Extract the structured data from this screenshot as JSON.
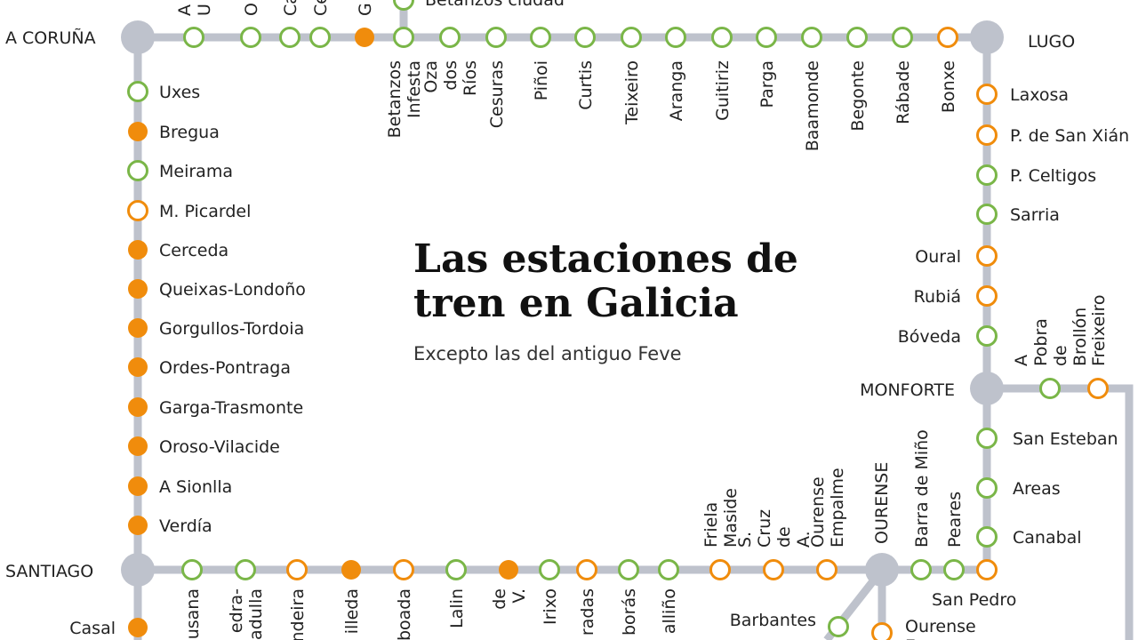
{
  "title_lines": [
    "Las estaciones de",
    "tren en Galicia"
  ],
  "subtitle": "Excepto las del antiguo Feve",
  "colors": {
    "line": "#bec2cc",
    "green": "#7ab648",
    "orange": "#f08c0c",
    "hub": "#bec2cc"
  },
  "legend_types": {
    "green_open": "green ring",
    "orange_open": "orange ring",
    "orange_fill": "orange dot"
  },
  "hubs": {
    "a_coruna": "A CORUÑA",
    "lugo": "LUGO",
    "santiago": "SANTIAGO",
    "monforte": "MONFORTE",
    "ourense": "OURENSE"
  },
  "top_row": [
    {
      "name": "A U",
      "type": "g"
    },
    {
      "name": "O",
      "type": "g"
    },
    {
      "name": "Ca",
      "type": "g"
    },
    {
      "name": "Ce",
      "type": "g"
    },
    {
      "name": "G",
      "type": "f"
    },
    {
      "name": "Betanzos Infesta",
      "type": "g"
    },
    {
      "name": "Oza dos Ríos",
      "type": "g"
    },
    {
      "name": "Cesuras",
      "type": "g"
    },
    {
      "name": "Piñoi",
      "type": "g"
    },
    {
      "name": "Curtis",
      "type": "g"
    },
    {
      "name": "Teixeiro",
      "type": "g"
    },
    {
      "name": "Aranga",
      "type": "g"
    },
    {
      "name": "Guitiriz",
      "type": "g"
    },
    {
      "name": "Parga",
      "type": "g"
    },
    {
      "name": "Baamonde",
      "type": "g"
    },
    {
      "name": "Begonte",
      "type": "g"
    },
    {
      "name": "Rábade",
      "type": "g"
    },
    {
      "name": "Bonxe",
      "type": "o"
    }
  ],
  "betanzos_branch": "Betanzos ciudad",
  "left_column": [
    {
      "name": "Uxes",
      "type": "g"
    },
    {
      "name": "Bregua",
      "type": "f"
    },
    {
      "name": "Meirama",
      "type": "g"
    },
    {
      "name": "M. Picardel",
      "type": "o"
    },
    {
      "name": "Cerceda",
      "type": "f"
    },
    {
      "name": "Queixas-Londoño",
      "type": "f"
    },
    {
      "name": "Gorgullos-Tordoia",
      "type": "f"
    },
    {
      "name": "Ordes-Pontraga",
      "type": "f"
    },
    {
      "name": "Garga-Trasmonte",
      "type": "f"
    },
    {
      "name": "Oroso-Vilacide",
      "type": "f"
    },
    {
      "name": "A Sionlla",
      "type": "f"
    },
    {
      "name": "Verdía",
      "type": "f"
    }
  ],
  "casal": "Casal",
  "right_column": [
    {
      "name": "Laxosa",
      "type": "o"
    },
    {
      "name": "P. de San Xián",
      "type": "o"
    },
    {
      "name": "P. Celtigos",
      "type": "g"
    },
    {
      "name": "Sarria",
      "type": "g"
    },
    {
      "name": "Oural",
      "type": "o"
    },
    {
      "name": "Rubiá",
      "type": "o"
    },
    {
      "name": "Bóveda",
      "type": "g"
    }
  ],
  "monforte_branch": [
    {
      "name": "A Pobra de Brollón",
      "type": "g"
    },
    {
      "name": "Freixeiro",
      "type": "o"
    }
  ],
  "right_lower": [
    {
      "name": "San Esteban",
      "type": "g"
    },
    {
      "name": "Areas",
      "type": "g"
    },
    {
      "name": "Canabal",
      "type": "g"
    },
    {
      "name": "San Pedro",
      "type": "o"
    }
  ],
  "bottom_row": [
    {
      "name": "usana",
      "type": "g"
    },
    {
      "name": "edra- adulla",
      "type": "g"
    },
    {
      "name": "ndeira",
      "type": "o"
    },
    {
      "name": "illeda",
      "type": "f"
    },
    {
      "name": "boada",
      "type": "o"
    },
    {
      "name": "Lalin",
      "type": "g"
    },
    {
      "name": "de V.",
      "type": "f"
    },
    {
      "name": "Irixo",
      "type": "g"
    },
    {
      "name": "radas",
      "type": "o"
    },
    {
      "name": "borás",
      "type": "g"
    },
    {
      "name": "alliño",
      "type": "g"
    },
    {
      "name": "Friela Maside",
      "type": "o"
    },
    {
      "name": "S. Cruz de A.",
      "type": "o"
    },
    {
      "name": "Ourense Empalme",
      "type": "o"
    }
  ],
  "east_of_ourense": [
    {
      "name": "Barra de Miño",
      "type": "g"
    },
    {
      "name": "Peares",
      "type": "g"
    }
  ],
  "ourense_south": [
    {
      "name": "Barbantes",
      "type": "g"
    },
    {
      "name": "Ourense E",
      "type": "o"
    }
  ]
}
